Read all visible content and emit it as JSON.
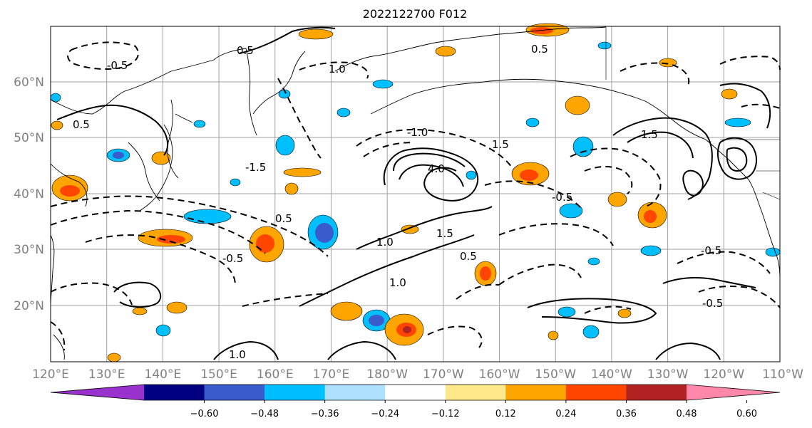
{
  "title": "2022122700 F012",
  "map": {
    "projection": "PlateCarree",
    "lon_range": [
      "120°E",
      "110°W"
    ],
    "lat_range": [
      "10°N",
      "70°N"
    ],
    "lat_ticks": [
      "20°N",
      "30°N",
      "40°N",
      "50°N",
      "60°N"
    ],
    "lon_ticks": [
      "120°E",
      "130°E",
      "140°E",
      "150°E",
      "160°E",
      "170°E",
      "180°W",
      "170°W",
      "160°W",
      "150°W",
      "140°W",
      "130°W",
      "120°W",
      "110°W"
    ],
    "gridlines": true,
    "coastlines": true,
    "tick_color": "#808080"
  },
  "colorbar": {
    "extend": "both",
    "colors": [
      "#9932cc",
      "#000080",
      "#3a5bcc",
      "#00bfff",
      "#b0e0ff",
      "#ffffff",
      "#ffe88a",
      "#ffa500",
      "#ff4500",
      "#b22222",
      "#ff88aa"
    ],
    "tick_labels": [
      "−0.60",
      "−0.48",
      "−0.36",
      "−0.24",
      "−0.12",
      "0.12",
      "0.24",
      "0.36",
      "0.48",
      "0.60"
    ]
  },
  "contour_labels": [
    "0.5",
    "-0.5",
    "1.0",
    "-1.0",
    "1.5",
    "-1.5",
    "4.0",
    "-0.5",
    "0.5",
    "1.0",
    "1.5",
    "-0.5",
    "0.5",
    "1.0",
    "0.5",
    "-0.5",
    "1.5",
    "-0.5",
    "0.5",
    "1.0"
  ]
}
